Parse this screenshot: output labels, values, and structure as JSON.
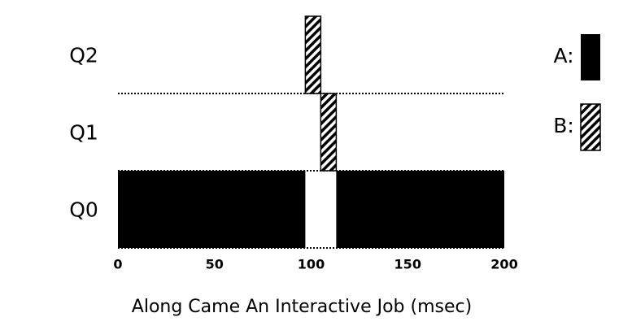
{
  "chart_data": {
    "type": "timeline",
    "xlabel": "Along Came An Interactive Job (msec)",
    "xlim": [
      0,
      200
    ],
    "xticks": [
      0,
      50,
      100,
      150,
      200
    ],
    "rows": [
      "Q2",
      "Q1",
      "Q0"
    ],
    "series": [
      {
        "name": "A:",
        "color": "#000000",
        "pattern": "solid",
        "segments": [
          {
            "row": "Q0",
            "start": 0,
            "end": 97
          },
          {
            "row": "Q0",
            "start": 113,
            "end": 200
          }
        ]
      },
      {
        "name": "B:",
        "color": "#000000",
        "pattern": "hatch",
        "segments": [
          {
            "row": "Q2",
            "start": 97,
            "end": 105
          },
          {
            "row": "Q1",
            "start": 105,
            "end": 113
          }
        ]
      }
    ]
  }
}
